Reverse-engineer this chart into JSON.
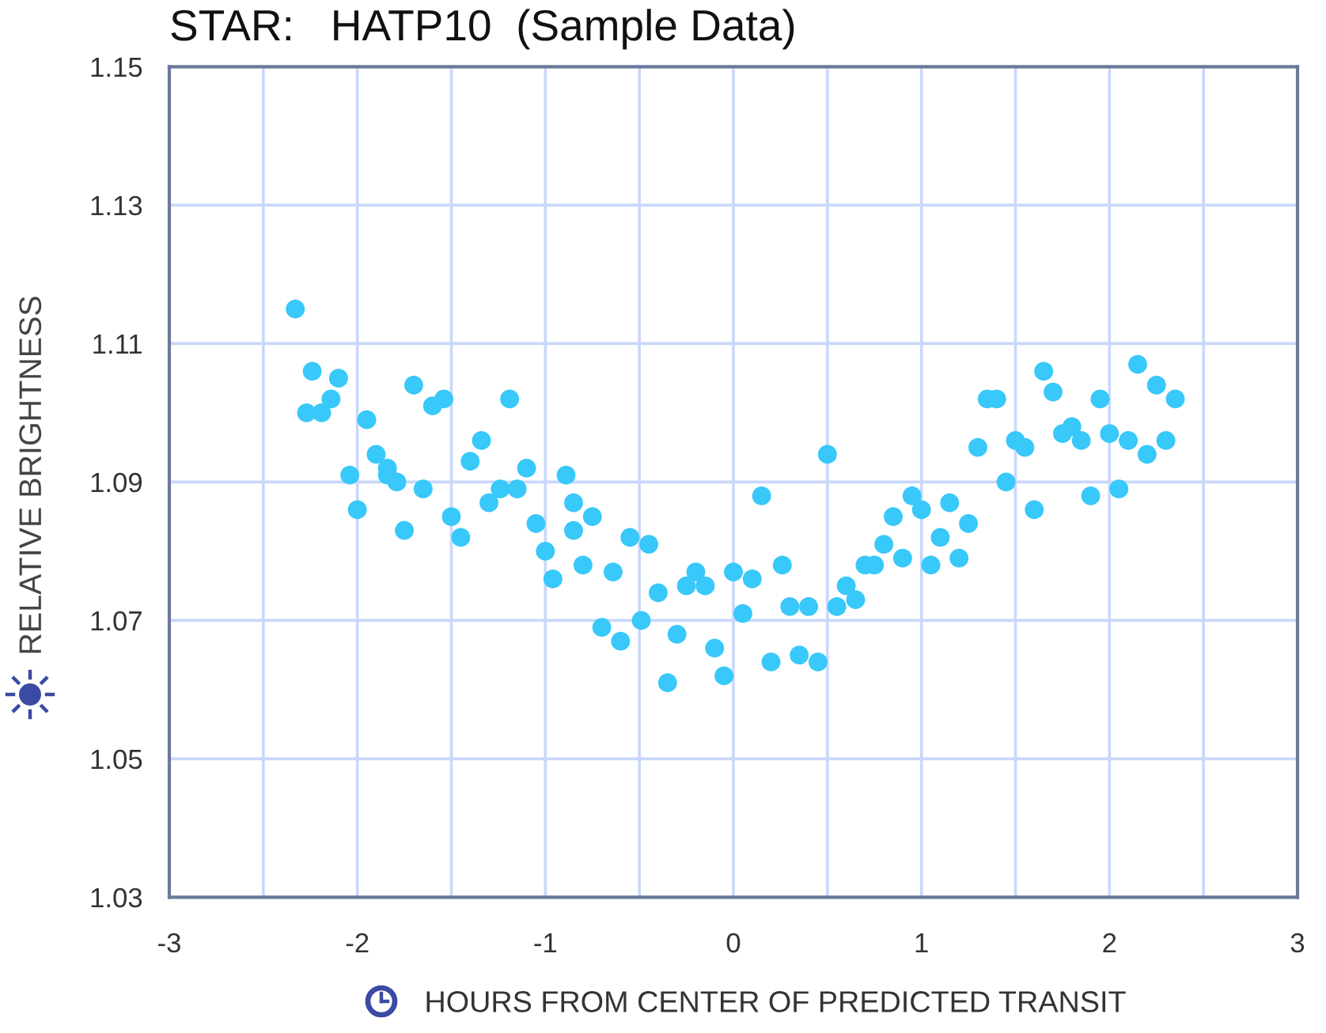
{
  "chart_data": {
    "type": "scatter",
    "title": "STAR:   HATP10  (Sample Data)",
    "xlabel": "HOURS FROM CENTER OF PREDICTED TRANSIT",
    "ylabel": "RELATIVE BRIGHTNESS",
    "x": [
      -2.33,
      -2.27,
      -2.24,
      -2.19,
      -2.14,
      -2.1,
      -2.04,
      -2.0,
      -1.95,
      -1.9,
      -1.84,
      -1.84,
      -1.79,
      -1.75,
      -1.7,
      -1.65,
      -1.6,
      -1.54,
      -1.5,
      -1.45,
      -1.4,
      -1.34,
      -1.3,
      -1.24,
      -1.19,
      -1.15,
      -1.1,
      -1.05,
      -1.0,
      -0.96,
      -0.89,
      -0.85,
      -0.85,
      -0.8,
      -0.75,
      -0.7,
      -0.64,
      -0.6,
      -0.55,
      -0.49,
      -0.45,
      -0.4,
      -0.35,
      -0.3,
      -0.25,
      -0.2,
      -0.15,
      -0.1,
      -0.05,
      0.0,
      0.05,
      0.1,
      0.15,
      0.2,
      0.26,
      0.3,
      0.35,
      0.4,
      0.45,
      0.5,
      0.55,
      0.6,
      0.65,
      0.7,
      0.75,
      0.8,
      0.85,
      0.9,
      0.95,
      1.0,
      1.05,
      1.1,
      1.15,
      1.2,
      1.25,
      1.3,
      1.35,
      1.4,
      1.45,
      1.5,
      1.55,
      1.6,
      1.65,
      1.7,
      1.75,
      1.8,
      1.85,
      1.9,
      1.95,
      2.0,
      2.05,
      2.1,
      2.15,
      2.2,
      2.25,
      2.3,
      2.35
    ],
    "values": [
      1.115,
      1.1,
      1.106,
      1.1,
      1.102,
      1.105,
      1.091,
      1.086,
      1.099,
      1.094,
      1.092,
      1.091,
      1.09,
      1.083,
      1.104,
      1.089,
      1.101,
      1.102,
      1.085,
      1.082,
      1.093,
      1.096,
      1.087,
      1.089,
      1.102,
      1.089,
      1.092,
      1.084,
      1.08,
      1.076,
      1.091,
      1.087,
      1.083,
      1.078,
      1.085,
      1.069,
      1.077,
      1.067,
      1.082,
      1.07,
      1.081,
      1.074,
      1.061,
      1.068,
      1.075,
      1.077,
      1.075,
      1.066,
      1.062,
      1.077,
      1.071,
      1.076,
      1.088,
      1.064,
      1.078,
      1.072,
      1.065,
      1.072,
      1.064,
      1.094,
      1.072,
      1.075,
      1.073,
      1.078,
      1.078,
      1.081,
      1.085,
      1.079,
      1.088,
      1.086,
      1.078,
      1.082,
      1.087,
      1.079,
      1.084,
      1.095,
      1.102,
      1.102,
      1.09,
      1.096,
      1.095,
      1.086,
      1.106,
      1.103,
      1.097,
      1.098,
      1.096,
      1.088,
      1.102,
      1.097,
      1.089,
      1.096,
      1.107,
      1.094,
      1.104,
      1.096,
      1.102
    ],
    "color": "#38c8f9",
    "marker": "circle",
    "xlim": [
      -3,
      3
    ],
    "ylim": [
      1.03,
      1.15
    ],
    "xticks": [
      -3,
      {
        "value": -2.5,
        "label": null
      },
      -2,
      {
        "value": -1.5,
        "label": null
      },
      -1,
      {
        "value": -0.5,
        "label": null
      },
      0,
      {
        "value": 0.5,
        "label": null
      },
      1,
      {
        "value": 1.5,
        "label": null
      },
      2,
      {
        "value": 2.5,
        "label": null
      },
      3
    ],
    "yticks": [
      1.03,
      1.05,
      1.07,
      1.09,
      1.11,
      1.13,
      1.15
    ],
    "grid": true
  }
}
